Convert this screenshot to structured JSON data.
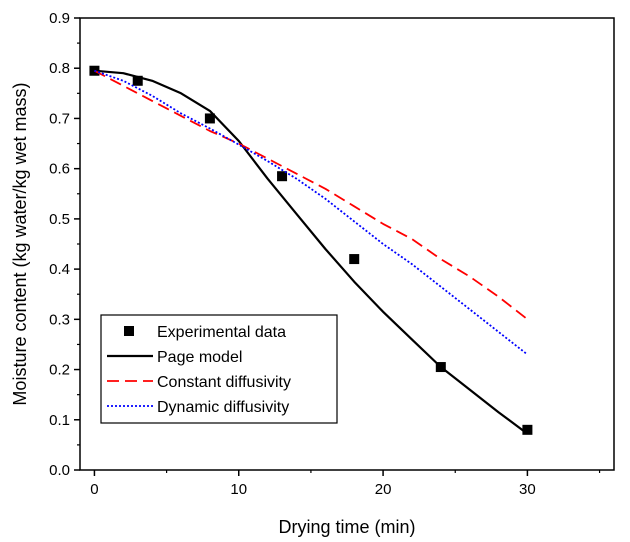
{
  "chart_data": {
    "type": "line",
    "title": "",
    "xlabel": "Drying time (min)",
    "ylabel": "Moisture content (kg water/kg wet mass)",
    "xlim": [
      -1,
      36
    ],
    "ylim": [
      0,
      0.9
    ],
    "xticks": [
      0,
      10,
      20,
      30
    ],
    "yticks": [
      0.0,
      0.1,
      0.2,
      0.3,
      0.4,
      0.5,
      0.6,
      0.7,
      0.8,
      0.9
    ],
    "ytick_labels": [
      "0.0",
      "0.1",
      "0.2",
      "0.3",
      "0.4",
      "0.5",
      "0.6",
      "0.7",
      "0.8",
      "0.9"
    ],
    "grid": false,
    "legend_position": "bottom-left",
    "series": [
      {
        "name": "Experimental data",
        "kind": "scatter",
        "marker": "square",
        "color": "#000000",
        "x": [
          0,
          3,
          8,
          13,
          18,
          24,
          30
        ],
        "y": [
          0.795,
          0.775,
          0.7,
          0.585,
          0.42,
          0.205,
          0.08
        ]
      },
      {
        "name": "Page model",
        "kind": "line",
        "dash": "solid",
        "color": "#000000",
        "x": [
          0,
          2,
          4,
          6,
          8,
          10,
          12,
          14,
          16,
          18,
          20,
          22,
          24,
          26,
          28,
          30
        ],
        "y": [
          0.795,
          0.79,
          0.775,
          0.75,
          0.715,
          0.655,
          0.58,
          0.51,
          0.44,
          0.375,
          0.315,
          0.26,
          0.205,
          0.16,
          0.115,
          0.072
        ]
      },
      {
        "name": "Constant diffusivity",
        "kind": "line",
        "dash": "dashed",
        "color": "#ff0000",
        "x": [
          0,
          2,
          4,
          6,
          8,
          10,
          12,
          14,
          16,
          18,
          20,
          22,
          24,
          26,
          28,
          30
        ],
        "y": [
          0.795,
          0.765,
          0.735,
          0.705,
          0.675,
          0.65,
          0.62,
          0.59,
          0.56,
          0.525,
          0.49,
          0.46,
          0.42,
          0.385,
          0.345,
          0.3
        ]
      },
      {
        "name": "Dynamic diffusivity",
        "kind": "line",
        "dash": "dotted",
        "color": "#0000ff",
        "x": [
          0,
          2,
          4,
          6,
          8,
          10,
          12,
          14,
          16,
          18,
          20,
          22,
          24,
          26,
          28,
          30
        ],
        "y": [
          0.795,
          0.775,
          0.745,
          0.71,
          0.68,
          0.648,
          0.615,
          0.58,
          0.54,
          0.495,
          0.45,
          0.41,
          0.365,
          0.32,
          0.275,
          0.23
        ]
      }
    ]
  }
}
